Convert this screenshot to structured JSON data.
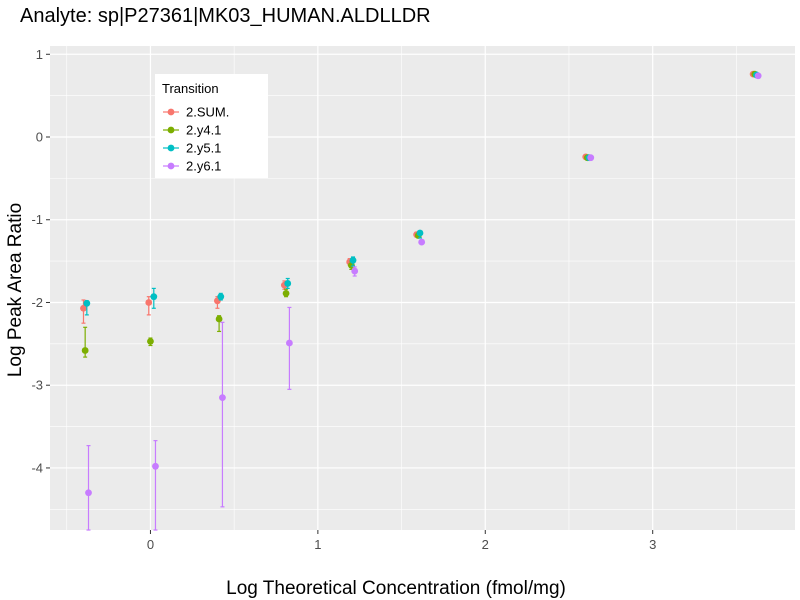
{
  "chart_data": {
    "type": "scatter",
    "title": "Analyte: sp|P27361|MK03_HUMAN.ALDLLDR",
    "xlabel": "Log Theoretical Concentration (fmol/mg)",
    "ylabel": "Log Peak Area Ratio",
    "xlim": [
      -0.6,
      3.85
    ],
    "ylim": [
      -4.75,
      1.1
    ],
    "xticks": [
      0,
      1,
      2,
      3
    ],
    "yticks": [
      1,
      0,
      -1,
      -2,
      -3,
      -4
    ],
    "xtick_labels": [
      "0",
      "1",
      "2",
      "3"
    ],
    "ytick_labels": [
      "1",
      "0",
      "-1",
      "-2",
      "-3",
      "-4"
    ],
    "grid": true,
    "legend": {
      "title": "Transition",
      "position": "top-left"
    },
    "series": [
      {
        "name": "2.SUM.",
        "color": "#F8766D",
        "points": [
          {
            "x": -0.4,
            "y": -2.07,
            "ylo": -2.25,
            "yhi": -1.97
          },
          {
            "x": -0.01,
            "y": -2.0,
            "ylo": -2.15,
            "yhi": -1.93
          },
          {
            "x": 0.4,
            "y": -1.98,
            "ylo": -2.07,
            "yhi": -1.93
          },
          {
            "x": 0.8,
            "y": -1.79,
            "ylo": -1.84,
            "yhi": -1.74
          },
          {
            "x": 1.19,
            "y": -1.51,
            "ylo": -1.55,
            "yhi": -1.47
          },
          {
            "x": 1.59,
            "y": -1.18,
            "ylo": -1.21,
            "yhi": -1.15
          },
          {
            "x": 2.6,
            "y": -0.24,
            "ylo": -0.26,
            "yhi": -0.22
          },
          {
            "x": 3.6,
            "y": 0.76,
            "ylo": 0.75,
            "yhi": 0.77
          }
        ]
      },
      {
        "name": "2.y4.1",
        "color": "#7CAE00",
        "points": [
          {
            "x": -0.39,
            "y": -2.58,
            "ylo": -2.66,
            "yhi": -2.3
          },
          {
            "x": 0.0,
            "y": -2.47,
            "ylo": -2.52,
            "yhi": -2.43
          },
          {
            "x": 0.41,
            "y": -2.2,
            "ylo": -2.35,
            "yhi": -2.16
          },
          {
            "x": 0.81,
            "y": -1.89,
            "ylo": -1.93,
            "yhi": -1.84
          },
          {
            "x": 1.2,
            "y": -1.55,
            "ylo": -1.6,
            "yhi": -1.5
          },
          {
            "x": 1.6,
            "y": -1.19,
            "ylo": -1.22,
            "yhi": -1.16
          },
          {
            "x": 2.61,
            "y": -0.25,
            "ylo": -0.27,
            "yhi": -0.23
          },
          {
            "x": 3.61,
            "y": 0.76,
            "ylo": 0.75,
            "yhi": 0.77
          }
        ]
      },
      {
        "name": "2.y5.1",
        "color": "#00BFC4",
        "points": [
          {
            "x": -0.38,
            "y": -2.01,
            "ylo": -2.15,
            "yhi": -1.98
          },
          {
            "x": 0.02,
            "y": -1.93,
            "ylo": -2.07,
            "yhi": -1.83
          },
          {
            "x": 0.42,
            "y": -1.93,
            "ylo": -1.97,
            "yhi": -1.89
          },
          {
            "x": 0.82,
            "y": -1.77,
            "ylo": -1.83,
            "yhi": -1.71
          },
          {
            "x": 1.21,
            "y": -1.49,
            "ylo": -1.56,
            "yhi": -1.45
          },
          {
            "x": 1.61,
            "y": -1.16,
            "ylo": -1.22,
            "yhi": -1.14
          },
          {
            "x": 2.62,
            "y": -0.25,
            "ylo": -0.27,
            "yhi": -0.23
          },
          {
            "x": 3.62,
            "y": 0.75,
            "ylo": 0.74,
            "yhi": 0.76
          }
        ]
      },
      {
        "name": "2.y6.1",
        "color": "#C77CFF",
        "points": [
          {
            "x": -0.37,
            "y": -4.3,
            "ylo": -4.75,
            "yhi": -3.73
          },
          {
            "x": 0.03,
            "y": -3.98,
            "ylo": -4.75,
            "yhi": -3.67
          },
          {
            "x": 0.43,
            "y": -3.15,
            "ylo": -4.47,
            "yhi": -2.24
          },
          {
            "x": 0.83,
            "y": -2.49,
            "ylo": -3.05,
            "yhi": -2.06
          },
          {
            "x": 1.22,
            "y": -1.62,
            "ylo": -1.68,
            "yhi": -1.57
          },
          {
            "x": 1.62,
            "y": -1.27,
            "ylo": -1.29,
            "yhi": -1.25
          },
          {
            "x": 2.63,
            "y": -0.25,
            "ylo": -0.27,
            "yhi": -0.23
          },
          {
            "x": 3.63,
            "y": 0.74,
            "ylo": 0.73,
            "yhi": 0.75
          }
        ]
      }
    ]
  }
}
